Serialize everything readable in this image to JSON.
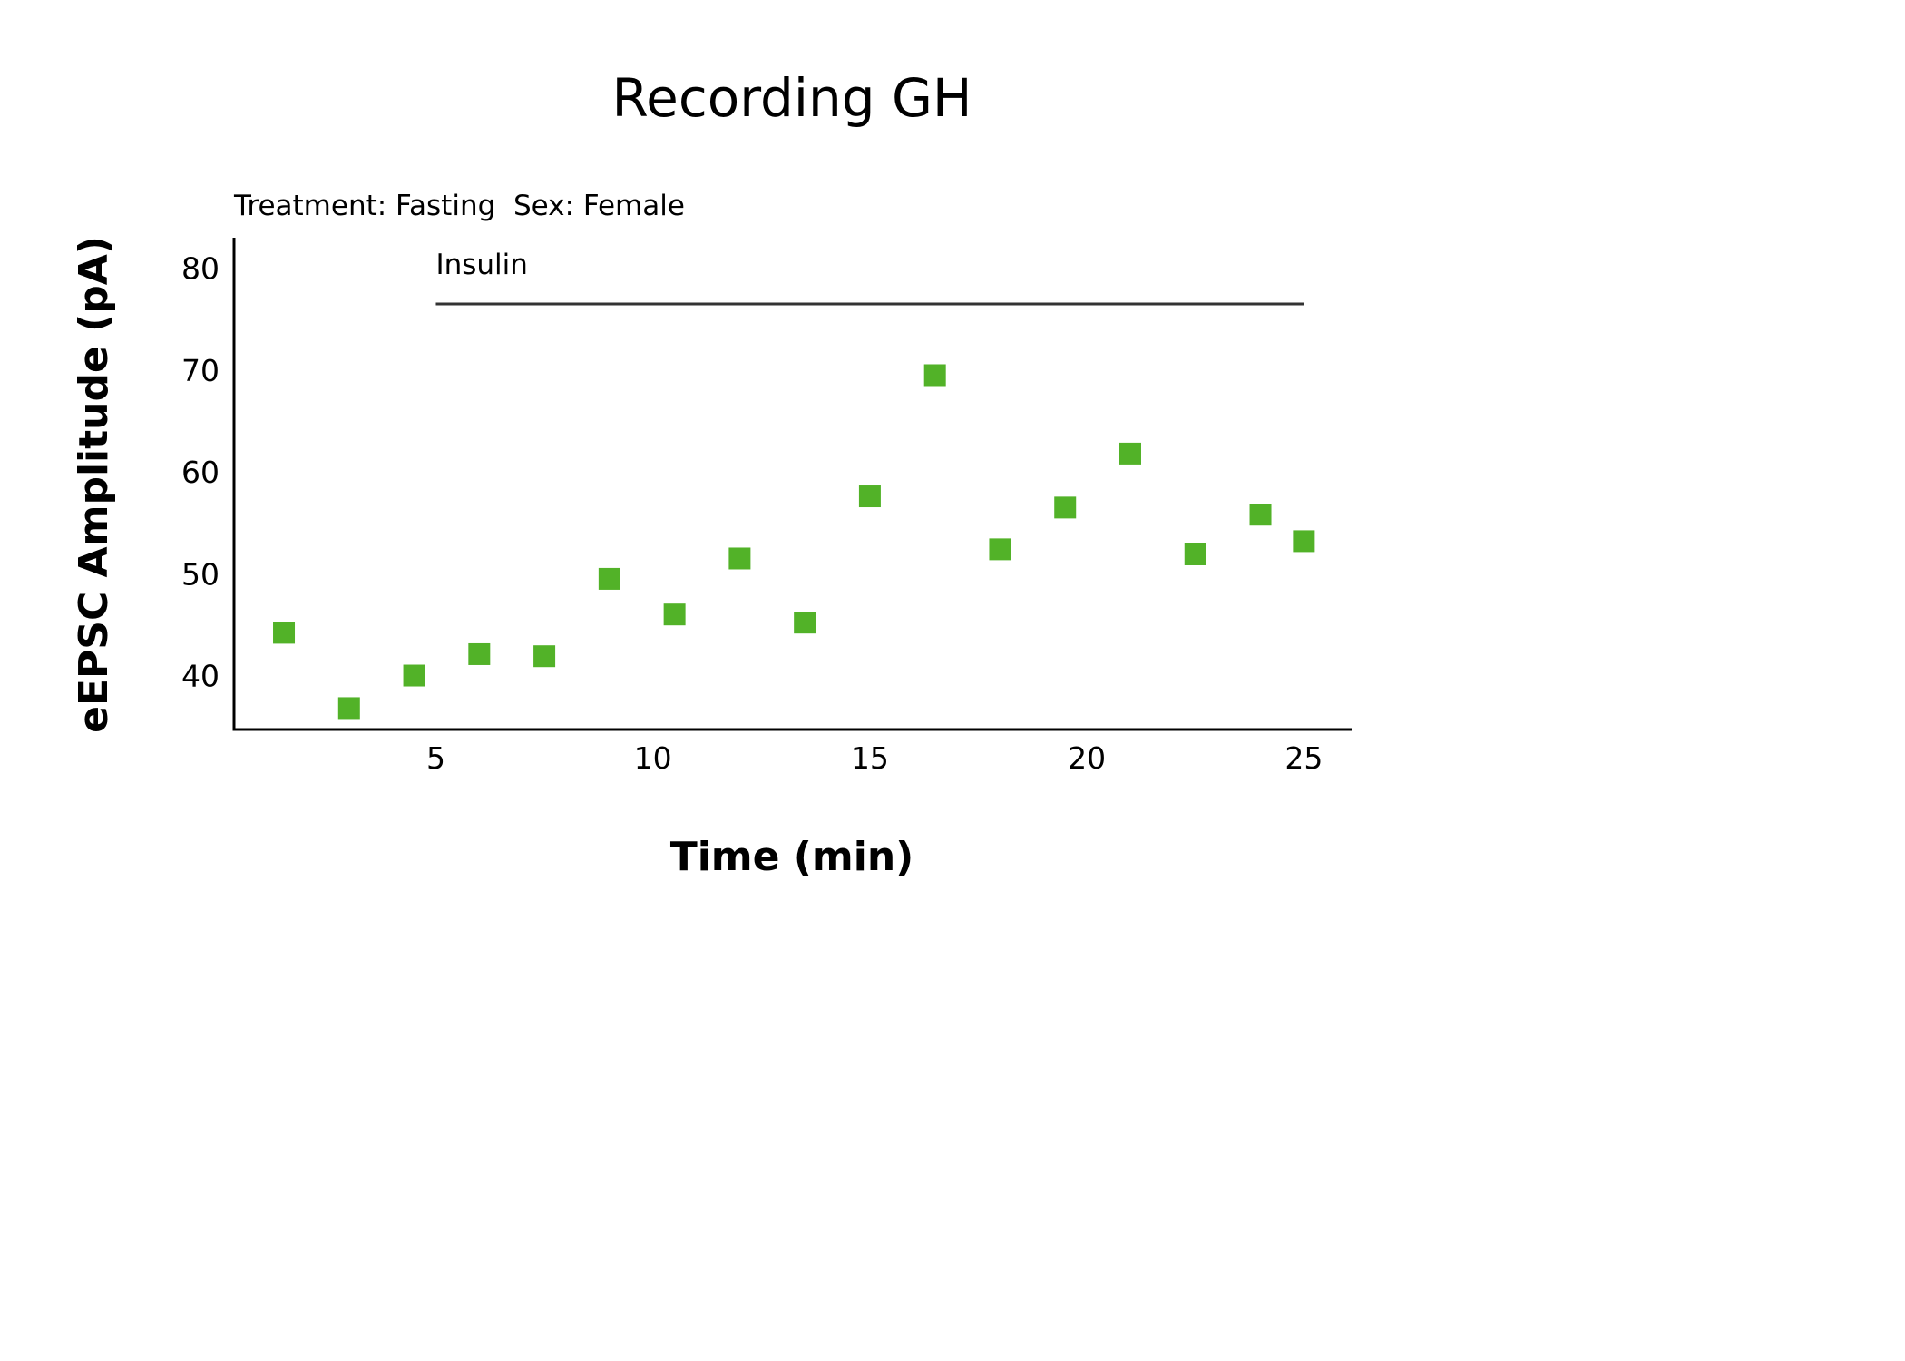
{
  "chart_data": {
    "type": "scatter",
    "title": "Recording GH",
    "subtitle": "Treatment: Fasting  Sex: Female",
    "xlabel": "Time (min)",
    "ylabel": "eEPSC Amplitude (pA)",
    "xlim": [
      0.35,
      26.1
    ],
    "ylim": [
      34.7,
      83
    ],
    "x_ticks": [
      5,
      10,
      15,
      20,
      25
    ],
    "y_ticks": [
      40,
      50,
      60,
      70,
      80
    ],
    "grid": false,
    "legend": "none",
    "marker": "square",
    "series": [
      {
        "color": "#52b228",
        "points": [
          {
            "x": 1.5,
            "y": 44.2
          },
          {
            "x": 3.0,
            "y": 36.8
          },
          {
            "x": 4.5,
            "y": 40.0
          },
          {
            "x": 6.0,
            "y": 42.1
          },
          {
            "x": 7.5,
            "y": 41.9
          },
          {
            "x": 9.0,
            "y": 49.5
          },
          {
            "x": 10.5,
            "y": 46.0
          },
          {
            "x": 12.0,
            "y": 51.5
          },
          {
            "x": 13.5,
            "y": 45.2
          },
          {
            "x": 15.0,
            "y": 57.6
          },
          {
            "x": 16.5,
            "y": 69.5
          },
          {
            "x": 18.0,
            "y": 52.4
          },
          {
            "x": 19.5,
            "y": 56.5
          },
          {
            "x": 21.0,
            "y": 61.8
          },
          {
            "x": 22.5,
            "y": 51.9
          },
          {
            "x": 24.0,
            "y": 55.8
          },
          {
            "x": 25.0,
            "y": 53.2
          }
        ]
      }
    ],
    "annotations": [
      {
        "text": "Insulin",
        "x_start": 5,
        "x_end": 25,
        "y": 76.5,
        "color": "#333333"
      }
    ]
  }
}
